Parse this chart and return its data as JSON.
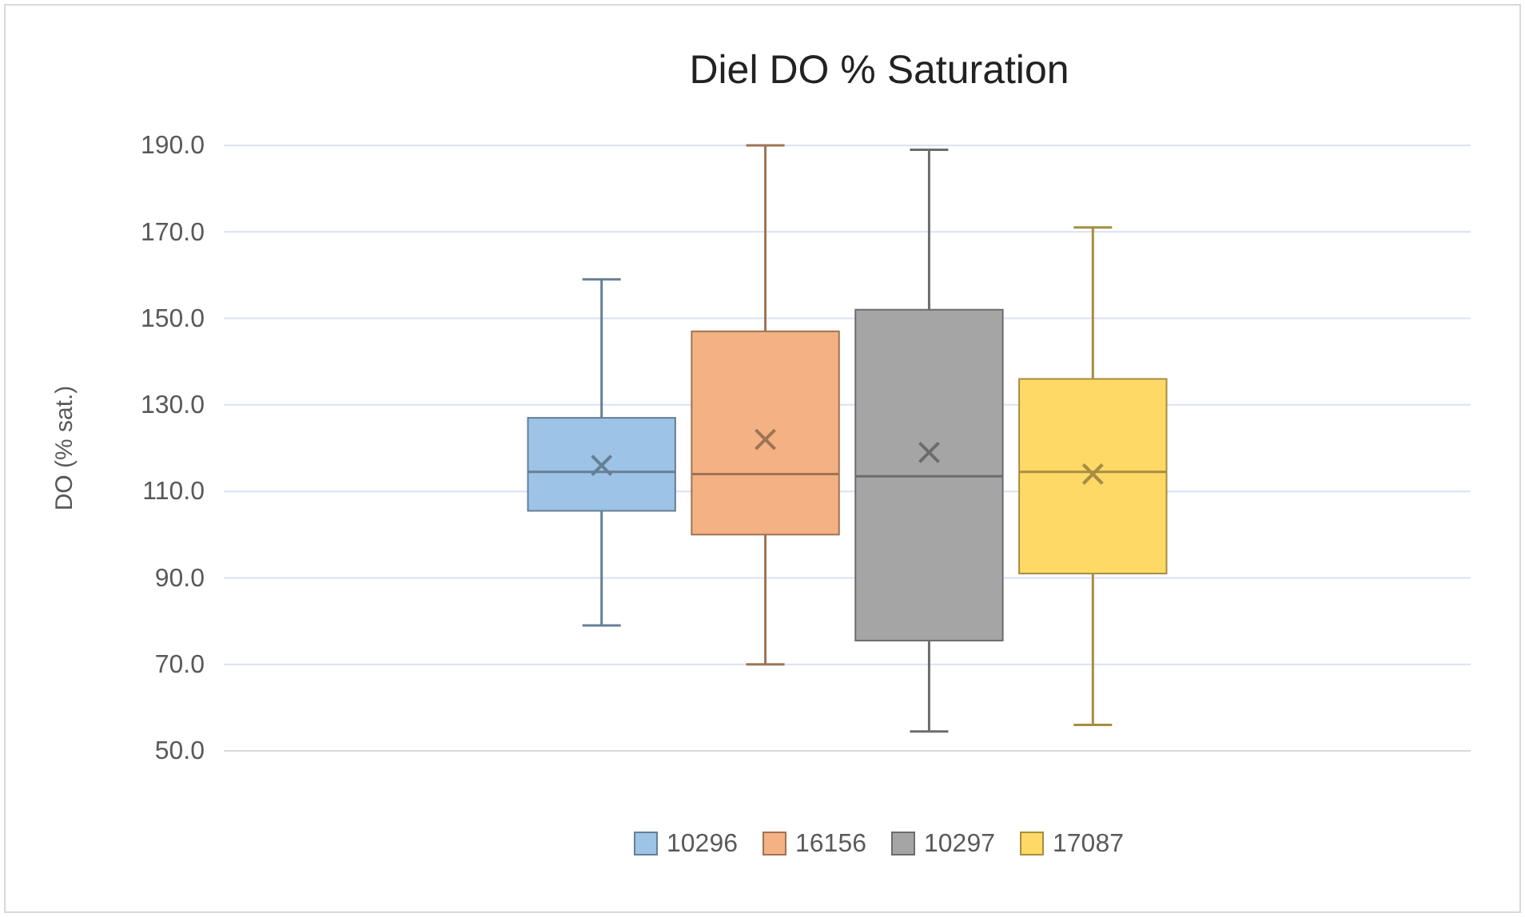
{
  "chart_data": {
    "type": "box",
    "title": "Diel DO % Saturation",
    "ylabel": "DO (% sat.)",
    "categories": [
      null
    ],
    "series": [
      {
        "name": "10296",
        "color": "#9dc3e6",
        "boxes": [
          {
            "low": 79,
            "q1": 105.5,
            "median": 114.5,
            "q3": 127,
            "high": 159,
            "mean": 116
          }
        ]
      },
      {
        "name": "16156",
        "color": "#f4b183",
        "boxes": [
          {
            "low": 70,
            "q1": 100,
            "median": 114,
            "q3": 147,
            "high": 190,
            "mean": 122
          }
        ]
      },
      {
        "name": "10297",
        "color": "#a5a5a5",
        "boxes": [
          {
            "low": 54.5,
            "q1": 75.5,
            "median": 113.5,
            "q3": 152,
            "high": 189,
            "mean": 119
          }
        ]
      },
      {
        "name": "17087",
        "color": "#ffd966",
        "boxes": [
          {
            "low": 56,
            "q1": 91,
            "median": 114.5,
            "q3": 136,
            "high": 171,
            "mean": 114
          }
        ]
      }
    ],
    "ylim": [
      50,
      190
    ],
    "yticks": [
      {
        "value": 50,
        "label": "50.0"
      },
      {
        "value": 70,
        "label": "70.0"
      },
      {
        "value": 90,
        "label": "90.0"
      },
      {
        "value": 110,
        "label": "110.0"
      },
      {
        "value": 130,
        "label": "130.0"
      },
      {
        "value": 150,
        "label": "150.0"
      },
      {
        "value": 170,
        "label": "170.0"
      },
      {
        "value": 190,
        "label": "190.0"
      }
    ],
    "grid": "y",
    "legend": "bottom"
  }
}
